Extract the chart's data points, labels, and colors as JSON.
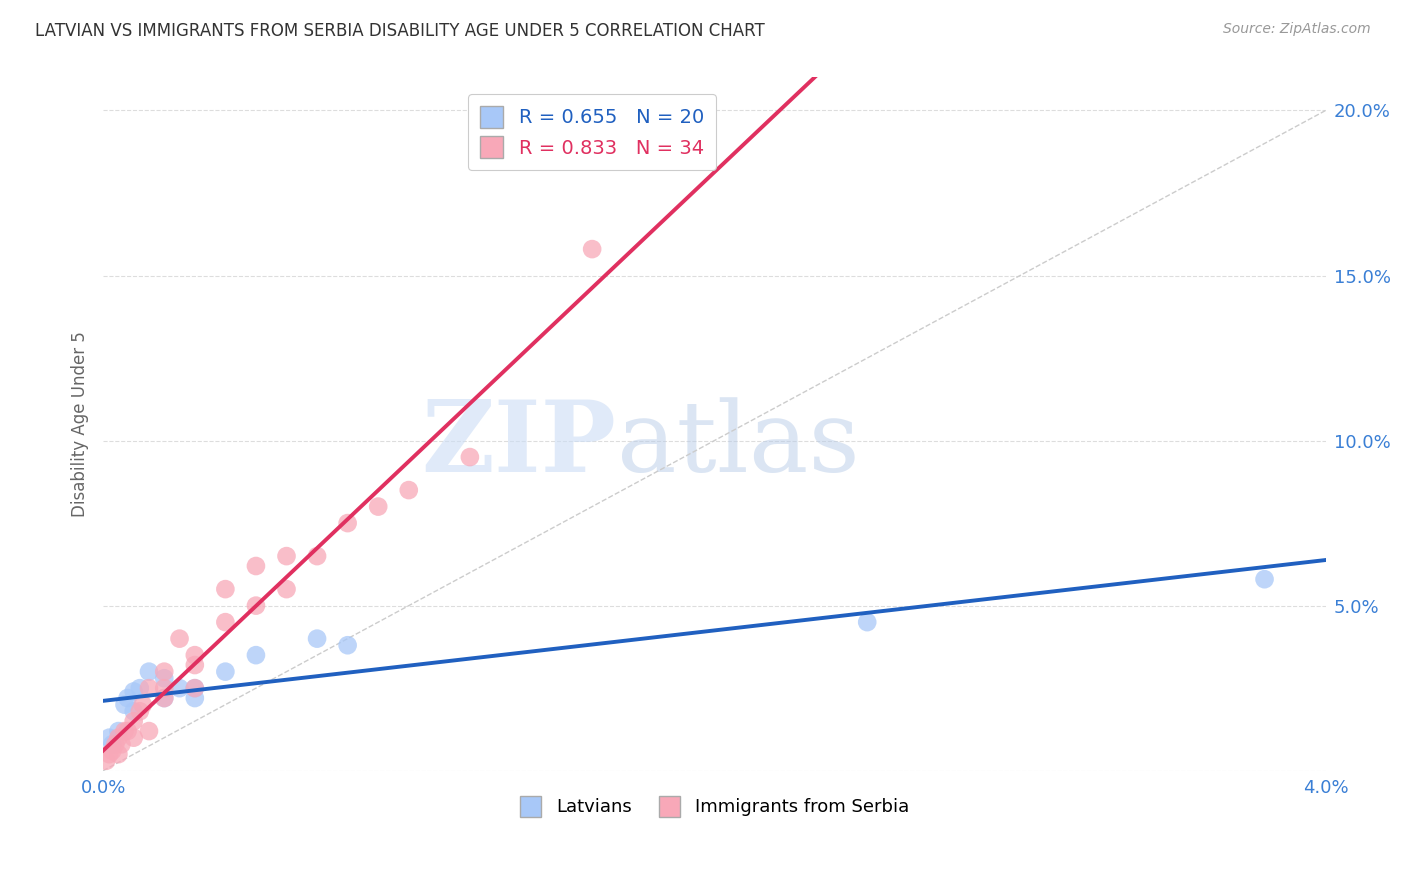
{
  "title": "LATVIAN VS IMMIGRANTS FROM SERBIA DISABILITY AGE UNDER 5 CORRELATION CHART",
  "source": "Source: ZipAtlas.com",
  "ylabel": "Disability Age Under 5",
  "legend_latvians": "Latvians",
  "legend_serbia": "Immigrants from Serbia",
  "r_latvians": 0.655,
  "n_latvians": 20,
  "r_serbia": 0.833,
  "n_serbia": 34,
  "xmin": 0.0,
  "xmax": 0.04,
  "ymin": 0.0,
  "ymax": 0.21,
  "yticks": [
    0.0,
    0.05,
    0.1,
    0.15,
    0.2
  ],
  "ytick_labels": [
    "",
    "5.0%",
    "10.0%",
    "15.0%",
    "20.0%"
  ],
  "xticks_minor": [
    0.0,
    0.01,
    0.02,
    0.03,
    0.04
  ],
  "color_latvians": "#a8c8f8",
  "color_serbia": "#f8a8b8",
  "trend_latvians_color": "#2060c0",
  "trend_serbia_color": "#e03060",
  "watermark_zip": "ZIP",
  "watermark_atlas": "atlas",
  "background_color": "#ffffff",
  "grid_color": "#dddddd",
  "latvians_x": [
    0.0002,
    0.0003,
    0.0005,
    0.0007,
    0.0008,
    0.001,
    0.001,
    0.0012,
    0.0015,
    0.002,
    0.002,
    0.0025,
    0.003,
    0.003,
    0.004,
    0.005,
    0.007,
    0.008,
    0.025,
    0.038
  ],
  "latvians_y": [
    0.01,
    0.008,
    0.012,
    0.02,
    0.022,
    0.018,
    0.024,
    0.025,
    0.03,
    0.022,
    0.028,
    0.025,
    0.025,
    0.022,
    0.03,
    0.035,
    0.04,
    0.038,
    0.045,
    0.058
  ],
  "serbia_x": [
    0.0001,
    0.0002,
    0.0003,
    0.0004,
    0.0005,
    0.0005,
    0.0006,
    0.0007,
    0.0008,
    0.001,
    0.001,
    0.0012,
    0.0013,
    0.0015,
    0.0015,
    0.002,
    0.002,
    0.002,
    0.0025,
    0.003,
    0.003,
    0.003,
    0.004,
    0.004,
    0.005,
    0.005,
    0.006,
    0.006,
    0.007,
    0.008,
    0.009,
    0.01,
    0.012,
    0.016
  ],
  "serbia_y": [
    0.003,
    0.005,
    0.006,
    0.008,
    0.005,
    0.01,
    0.008,
    0.012,
    0.012,
    0.01,
    0.015,
    0.018,
    0.02,
    0.025,
    0.012,
    0.022,
    0.025,
    0.03,
    0.04,
    0.032,
    0.025,
    0.035,
    0.045,
    0.055,
    0.05,
    0.062,
    0.065,
    0.055,
    0.065,
    0.075,
    0.08,
    0.085,
    0.095,
    0.158
  ]
}
